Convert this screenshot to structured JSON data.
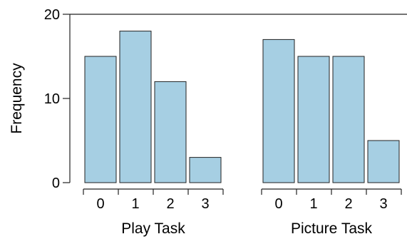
{
  "chart_data": {
    "type": "bar",
    "ylabel": "Frequency",
    "ylim": [
      0,
      20
    ],
    "yticks": [
      0,
      10,
      20
    ],
    "bar_color": "#a6cfe3",
    "edge_color": "#222222",
    "panels": [
      {
        "label": "Play Task",
        "categories": [
          "0",
          "1",
          "2",
          "3"
        ],
        "values": [
          15,
          18,
          12,
          3
        ]
      },
      {
        "label": "Picture Task",
        "categories": [
          "0",
          "1",
          "2",
          "3"
        ],
        "values": [
          17,
          15,
          15,
          5
        ]
      }
    ]
  }
}
